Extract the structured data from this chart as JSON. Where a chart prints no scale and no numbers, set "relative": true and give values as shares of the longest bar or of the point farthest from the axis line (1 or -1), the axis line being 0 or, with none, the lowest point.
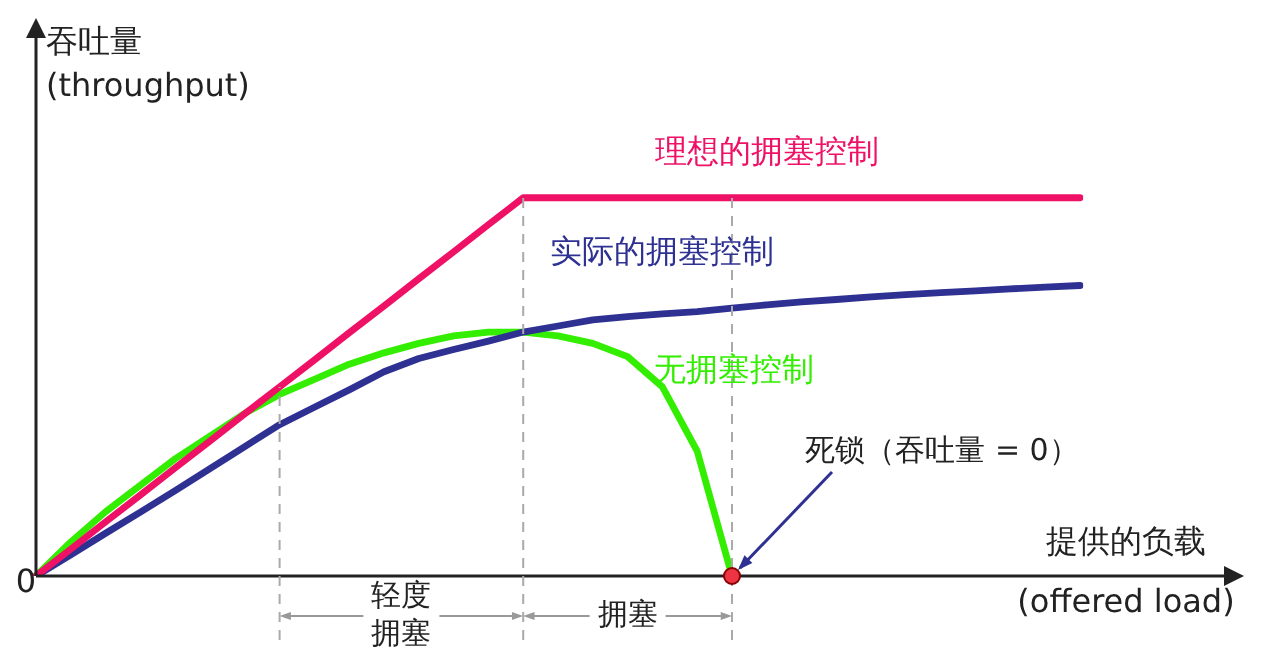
{
  "chart_data": {
    "type": "line",
    "relative": true,
    "ylabel": "吞吐量\n(throughput)",
    "xlabel": "提供的负载\n(offered load)",
    "legend": false,
    "marker": "none",
    "line_style": "solid",
    "categories": [
      null,
      null,
      null,
      null,
      null,
      null,
      null,
      null,
      null,
      null,
      null,
      null,
      null,
      null,
      null,
      null,
      null,
      null,
      null,
      null,
      null,
      null,
      null,
      null,
      null,
      null,
      null,
      null,
      null,
      null,
      null
    ],
    "series": [
      {
        "name": "理想的拥塞控制",
        "color": "#ee1166",
        "values": [
          0,
          0.071,
          0.143,
          0.214,
          0.286,
          0.357,
          0.429,
          0.5,
          0.571,
          0.643,
          0.714,
          0.786,
          0.857,
          0.929,
          1,
          1,
          1,
          1,
          1,
          1,
          1,
          1,
          1,
          1,
          1,
          1,
          1,
          1,
          1,
          1,
          1
        ]
      },
      {
        "name": "实际的拥塞控制",
        "color": "#2e3192",
        "values": [
          0,
          0.056,
          0.113,
          0.169,
          0.226,
          0.284,
          0.342,
          0.4,
          0.446,
          0.492,
          0.54,
          0.575,
          0.599,
          0.621,
          0.645,
          0.661,
          0.677,
          0.686,
          0.693,
          0.699,
          0.708,
          0.717,
          0.725,
          0.731,
          0.738,
          0.744,
          0.749,
          0.754,
          0.759,
          0.764,
          0.768
        ]
      },
      {
        "name": "无拥塞控制",
        "color": "#33ee00",
        "values": [
          0,
          0.09,
          0.17,
          0.24,
          0.31,
          0.37,
          0.43,
          0.48,
          0.52,
          0.56,
          0.59,
          0.615,
          0.635,
          0.645,
          0.645,
          0.635,
          0.615,
          0.58,
          0.5,
          0.33,
          0,
          null,
          null,
          null,
          null,
          null,
          null,
          null,
          null,
          null,
          null
        ]
      }
    ],
    "annotations": [
      "0",
      "死锁（吞吐量 = 0）",
      "轻度拥塞",
      "拥塞"
    ]
  }
}
